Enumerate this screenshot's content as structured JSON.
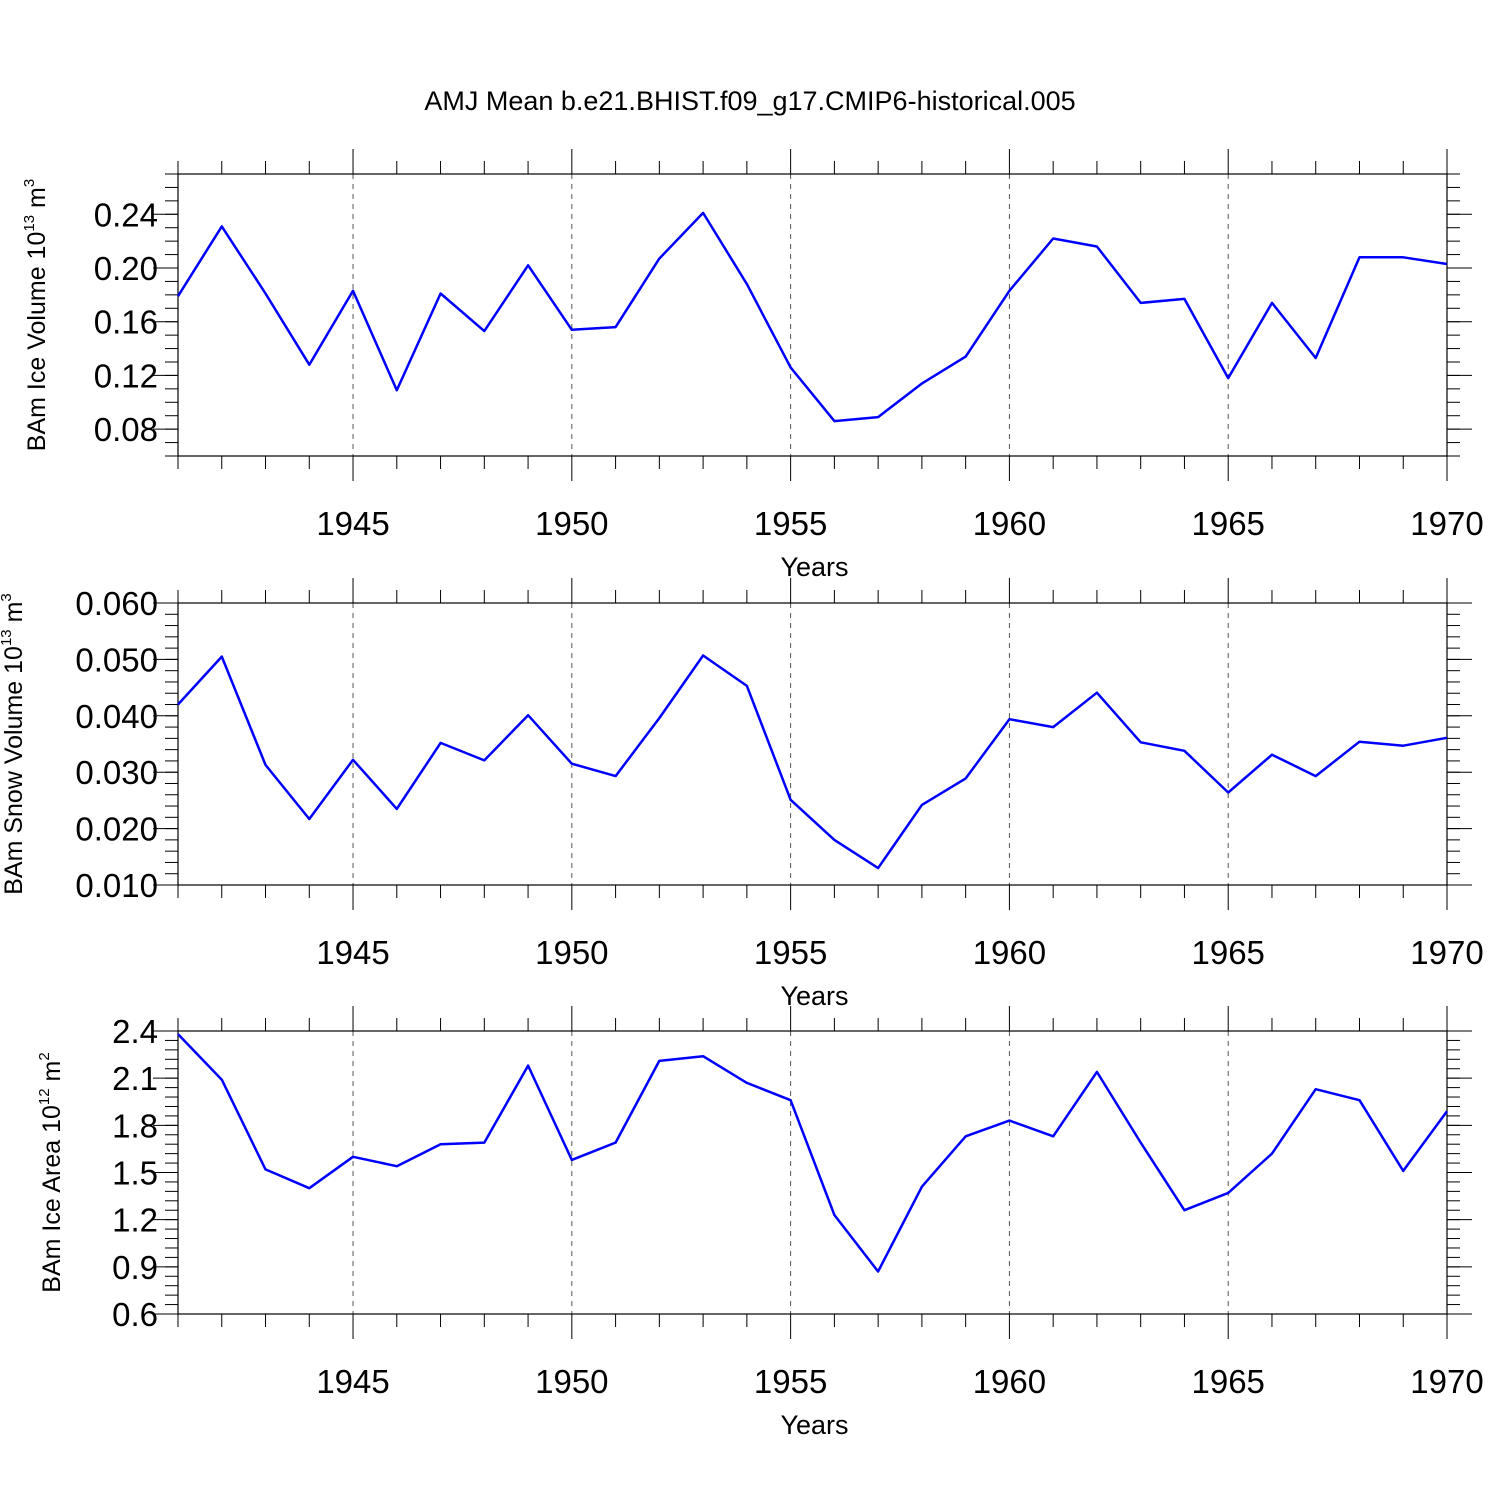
{
  "chart_data": [
    {
      "type": "line",
      "title": "AMJ Mean b.e21.BHIST.f09_g17.CMIP6-historical.005",
      "xlabel": "Years",
      "ylabel": {
        "text": "BAm Ice Volume 10",
        "exp": "13",
        "unit": " m",
        "unit_exp": "3"
      },
      "xlim": [
        1941,
        1970
      ],
      "ylim": [
        0.06,
        0.27
      ],
      "xticks": [
        "1945",
        "1950",
        "1955",
        "1960",
        "1965",
        "1970"
      ],
      "yticks": [
        "0.08",
        "0.12",
        "0.16",
        "0.20",
        "0.24"
      ],
      "grid": "vertical-dashed-at-major-x",
      "line_color": "#0000ff",
      "x": [
        1941,
        1942,
        1943,
        1944,
        1945,
        1946,
        1947,
        1948,
        1949,
        1950,
        1951,
        1952,
        1953,
        1954,
        1955,
        1956,
        1957,
        1958,
        1959,
        1960,
        1961,
        1962,
        1963,
        1964,
        1965,
        1966,
        1967,
        1968,
        1969,
        1970
      ],
      "values": [
        0.179,
        0.231,
        0.181,
        0.128,
        0.183,
        0.109,
        0.181,
        0.153,
        0.202,
        0.154,
        0.156,
        0.207,
        0.241,
        0.188,
        0.126,
        0.086,
        0.089,
        0.114,
        0.134,
        0.183,
        0.222,
        0.216,
        0.174,
        0.177,
        0.118,
        0.174,
        0.133,
        0.208,
        0.208,
        0.203
      ]
    },
    {
      "type": "line",
      "title": "",
      "xlabel": "Years",
      "ylabel": {
        "text": "BAm Snow Volume 10",
        "exp": "13",
        "unit": " m",
        "unit_exp": "3"
      },
      "xlim": [
        1941,
        1970
      ],
      "ylim": [
        0.01,
        0.06
      ],
      "xticks": [
        "1945",
        "1950",
        "1955",
        "1960",
        "1965",
        "1970"
      ],
      "yticks": [
        "0.010",
        "0.020",
        "0.030",
        "0.040",
        "0.050",
        "0.060"
      ],
      "grid": "vertical-dashed-at-major-x",
      "line_color": "#0000ff",
      "x": [
        1941,
        1942,
        1943,
        1944,
        1945,
        1946,
        1947,
        1948,
        1949,
        1950,
        1951,
        1952,
        1953,
        1954,
        1955,
        1956,
        1957,
        1958,
        1959,
        1960,
        1961,
        1962,
        1963,
        1964,
        1965,
        1966,
        1967,
        1968,
        1969,
        1970
      ],
      "values": [
        0.042,
        0.0505,
        0.0313,
        0.0217,
        0.0322,
        0.0235,
        0.0352,
        0.0321,
        0.0401,
        0.0315,
        0.0293,
        0.0396,
        0.0507,
        0.0453,
        0.0251,
        0.018,
        0.013,
        0.0242,
        0.0289,
        0.0394,
        0.038,
        0.0441,
        0.0353,
        0.0338,
        0.0264,
        0.0331,
        0.0293,
        0.0354,
        0.0347,
        0.0361
      ]
    },
    {
      "type": "line",
      "title": "",
      "xlabel": "Years",
      "ylabel": {
        "text": "BAm Ice Area 10",
        "exp": "12",
        "unit": " m",
        "unit_exp": "2"
      },
      "xlim": [
        1941,
        1970
      ],
      "ylim": [
        0.6,
        2.4
      ],
      "xticks": [
        "1945",
        "1950",
        "1955",
        "1960",
        "1965",
        "1970"
      ],
      "yticks": [
        "0.6",
        "0.9",
        "1.2",
        "1.5",
        "1.8",
        "2.1",
        "2.4"
      ],
      "grid": "vertical-dashed-at-major-x",
      "line_color": "#0000ff",
      "x": [
        1941,
        1942,
        1943,
        1944,
        1945,
        1946,
        1947,
        1948,
        1949,
        1950,
        1951,
        1952,
        1953,
        1954,
        1955,
        1956,
        1957,
        1958,
        1959,
        1960,
        1961,
        1962,
        1963,
        1964,
        1965,
        1966,
        1967,
        1968,
        1969,
        1970
      ],
      "values": [
        2.38,
        2.09,
        1.52,
        1.4,
        1.6,
        1.54,
        1.68,
        1.69,
        2.18,
        1.58,
        1.69,
        2.21,
        2.24,
        2.07,
        1.96,
        1.23,
        0.87,
        1.41,
        1.73,
        1.83,
        1.73,
        2.14,
        1.69,
        1.26,
        1.37,
        1.62,
        2.03,
        1.96,
        1.51,
        1.89
      ]
    }
  ]
}
